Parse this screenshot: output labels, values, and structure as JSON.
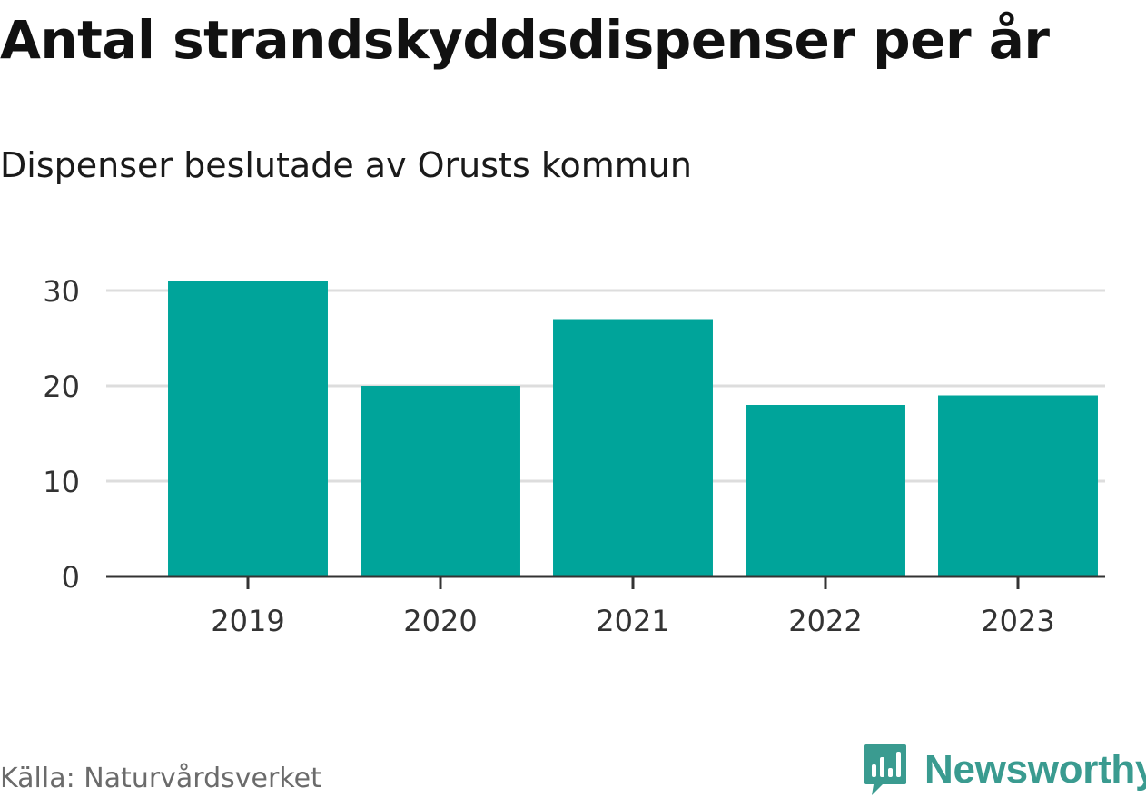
{
  "chart_data": {
    "type": "bar",
    "title": "Antal strandskyddsdispenser per år",
    "subtitle": "Dispenser beslutade av Orusts kommun",
    "categories": [
      "2019",
      "2020",
      "2021",
      "2022",
      "2023"
    ],
    "values": [
      31,
      20,
      27,
      18,
      19
    ],
    "yticks": [
      "0",
      "10",
      "20",
      "30"
    ],
    "ylim": [
      0,
      35
    ],
    "xlabel": "",
    "ylabel": "",
    "grid": true,
    "bar_color": "#00a49a",
    "grid_color": "#dddddd",
    "axis_color": "#333333"
  },
  "footer": {
    "source": "Källa: Naturvårdsverket",
    "logo_text": "Newsworthy",
    "logo_color": "#3a9b90"
  }
}
